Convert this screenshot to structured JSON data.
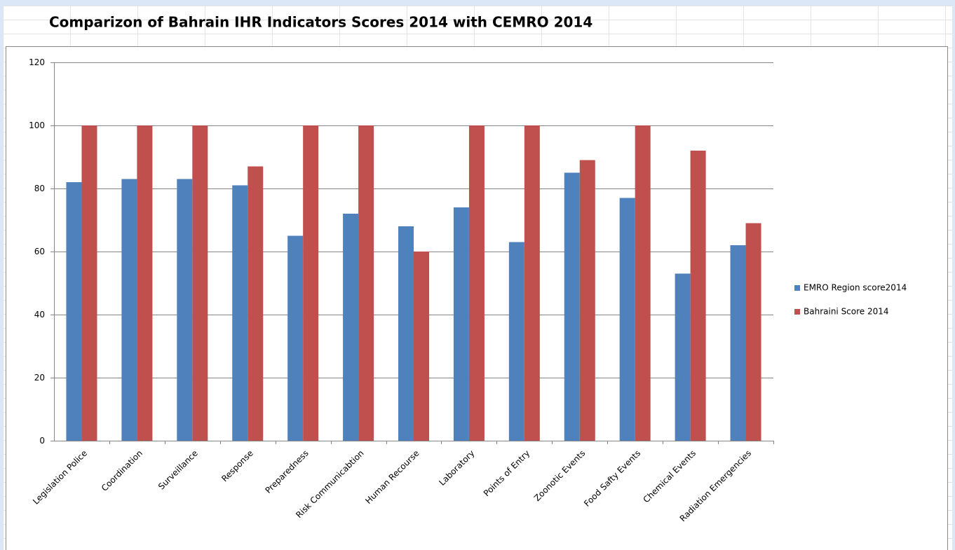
{
  "chart_data": {
    "type": "bar",
    "title": "Comparizon of Bahrain IHR Indicators Scores 2014 with CEMRO 2014",
    "categories": [
      "Legislation Police",
      "Coordination",
      "Surveillance",
      "Response",
      "Preparedness",
      "Risk Communicabtion",
      "Human Recourse",
      "Laboratory",
      "Points of Entry",
      "Zoonotic Events",
      "Food Safty Events",
      "Chemical Events",
      "Radiation Emergencies"
    ],
    "series": [
      {
        "name": "EMRO Region score2014",
        "color": "#4f81bd",
        "values": [
          82,
          83,
          83,
          81,
          65,
          72,
          68,
          74,
          63,
          85,
          77,
          53,
          62
        ]
      },
      {
        "name": "Bahraini Score 2014",
        "color": "#c0504d",
        "values": [
          100,
          100,
          100,
          87,
          100,
          100,
          60,
          100,
          100,
          89,
          100,
          92,
          69
        ]
      }
    ],
    "ylim": [
      0,
      120
    ],
    "yticks": [
      0,
      20,
      40,
      60,
      80,
      100,
      120
    ],
    "grid": true,
    "legend": "right"
  }
}
